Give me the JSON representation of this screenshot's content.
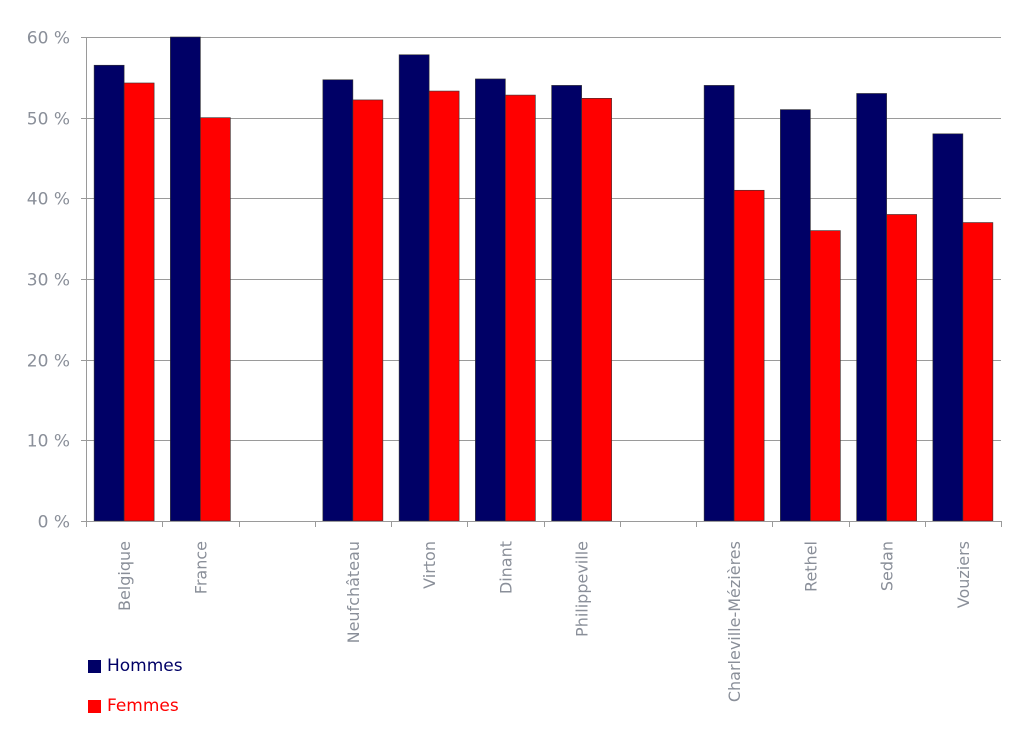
{
  "chart_data": {
    "type": "bar",
    "title": "",
    "xlabel": "",
    "ylabel": "",
    "ylim": [
      0,
      60
    ],
    "yticks": [
      0,
      10,
      20,
      30,
      40,
      50,
      60
    ],
    "ytick_labels": [
      "0 %",
      "10 %",
      "20 %",
      "30 %",
      "40 %",
      "50 %",
      "60 %"
    ],
    "grid": true,
    "legend_position": "bottom-left",
    "categories": [
      "Belgique",
      "France",
      "",
      "Neufchâteau",
      "Virton",
      "Dinant",
      "Philippeville",
      "",
      "Charleville-Mézières",
      "Rethel",
      "Sedan",
      "Vouziers"
    ],
    "series": [
      {
        "name": "Hommes",
        "color": "#000066",
        "values": [
          56.5,
          60,
          null,
          54.7,
          57.8,
          54.8,
          54,
          null,
          54,
          51,
          53,
          48
        ]
      },
      {
        "name": "Femmes",
        "color": "#ff0000",
        "values": [
          54.3,
          50,
          null,
          52.2,
          53.3,
          52.8,
          52.4,
          null,
          41,
          36,
          38,
          37
        ]
      }
    ]
  }
}
